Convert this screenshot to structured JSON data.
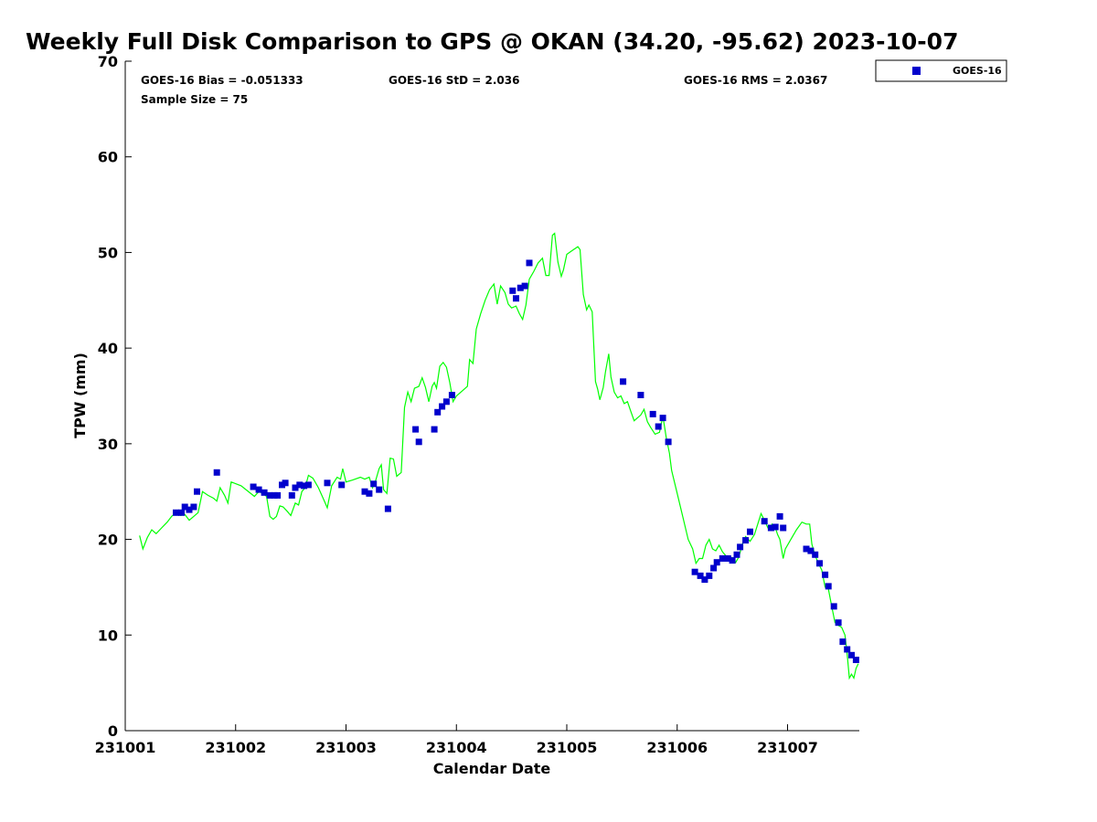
{
  "chart_data": {
    "type": "scatter",
    "title": "Weekly Full Disk Comparison to GPS @ OKAN (34.20, -95.62) 2023-10-07",
    "xlabel": "Calendar Date",
    "ylabel": "TPW (mm)",
    "ylim": [
      0,
      70
    ],
    "yticks": [
      0,
      10,
      20,
      30,
      40,
      50,
      60,
      70
    ],
    "xlim": [
      0,
      6.65
    ],
    "xticks": [
      {
        "value": 0,
        "label": "231001"
      },
      {
        "value": 1,
        "label": "231002"
      },
      {
        "value": 2,
        "label": "231003"
      },
      {
        "value": 3,
        "label": "231004"
      },
      {
        "value": 4,
        "label": "231005"
      },
      {
        "value": 5,
        "label": "231006"
      },
      {
        "value": 6,
        "label": "231007"
      }
    ],
    "stats": {
      "bias": "GOES-16 Bias = -0.051333",
      "std": "GOES-16 StD = 2.036",
      "rms": "GOES-16 RMS = 2.0367",
      "sample": "Sample Size = 75"
    },
    "legend": {
      "placement": "top-right",
      "entries": [
        "GOES-16"
      ]
    },
    "colors": {
      "goes_marker": "#0000cc",
      "gps_line": "#00ff00"
    },
    "series": [
      {
        "name": "GOES-16",
        "kind": "scatter",
        "points": [
          [
            0.46,
            22.8
          ],
          [
            0.51,
            22.8
          ],
          [
            0.54,
            23.4
          ],
          [
            0.58,
            23.1
          ],
          [
            0.62,
            23.4
          ],
          [
            0.65,
            25.0
          ],
          [
            0.83,
            27.0
          ],
          [
            1.16,
            25.5
          ],
          [
            1.21,
            25.2
          ],
          [
            1.26,
            24.9
          ],
          [
            1.31,
            24.6
          ],
          [
            1.35,
            24.6
          ],
          [
            1.38,
            24.6
          ],
          [
            1.42,
            25.7
          ],
          [
            1.45,
            25.9
          ],
          [
            1.51,
            24.6
          ],
          [
            1.54,
            25.4
          ],
          [
            1.58,
            25.7
          ],
          [
            1.62,
            25.6
          ],
          [
            1.66,
            25.7
          ],
          [
            1.83,
            25.9
          ],
          [
            1.96,
            25.7
          ],
          [
            2.17,
            25.0
          ],
          [
            2.21,
            24.8
          ],
          [
            2.25,
            25.8
          ],
          [
            2.3,
            25.2
          ],
          [
            2.38,
            23.2
          ],
          [
            2.63,
            31.5
          ],
          [
            2.66,
            30.2
          ],
          [
            2.8,
            31.5
          ],
          [
            2.83,
            33.3
          ],
          [
            2.87,
            33.9
          ],
          [
            2.91,
            34.4
          ],
          [
            2.96,
            35.1
          ],
          [
            3.51,
            46.0
          ],
          [
            3.54,
            45.2
          ],
          [
            3.58,
            46.3
          ],
          [
            3.62,
            46.5
          ],
          [
            3.66,
            48.9
          ],
          [
            4.51,
            36.5
          ],
          [
            4.67,
            35.1
          ],
          [
            4.78,
            33.1
          ],
          [
            4.83,
            31.8
          ],
          [
            4.87,
            32.7
          ],
          [
            4.92,
            30.2
          ],
          [
            5.16,
            16.6
          ],
          [
            5.21,
            16.2
          ],
          [
            5.25,
            15.8
          ],
          [
            5.29,
            16.2
          ],
          [
            5.33,
            17.0
          ],
          [
            5.36,
            17.6
          ],
          [
            5.41,
            18.0
          ],
          [
            5.46,
            18.0
          ],
          [
            5.5,
            17.8
          ],
          [
            5.54,
            18.4
          ],
          [
            5.57,
            19.2
          ],
          [
            5.62,
            19.9
          ],
          [
            5.66,
            20.8
          ],
          [
            5.79,
            21.9
          ],
          [
            5.85,
            21.2
          ],
          [
            5.89,
            21.3
          ],
          [
            5.93,
            22.4
          ],
          [
            5.96,
            21.2
          ],
          [
            6.17,
            19.0
          ],
          [
            6.21,
            18.8
          ],
          [
            6.25,
            18.4
          ],
          [
            6.29,
            17.5
          ],
          [
            6.34,
            16.3
          ],
          [
            6.37,
            15.1
          ],
          [
            6.42,
            13.0
          ],
          [
            6.46,
            11.3
          ],
          [
            6.5,
            9.3
          ],
          [
            6.54,
            8.5
          ],
          [
            6.58,
            7.9
          ],
          [
            6.62,
            7.4
          ]
        ]
      },
      {
        "name": "GPS",
        "kind": "line",
        "points": [
          [
            0.13,
            20.4
          ],
          [
            0.16,
            19.0
          ],
          [
            0.2,
            20.2
          ],
          [
            0.24,
            21.0
          ],
          [
            0.28,
            20.6
          ],
          [
            0.33,
            21.2
          ],
          [
            0.38,
            21.8
          ],
          [
            0.42,
            22.4
          ],
          [
            0.46,
            22.8
          ],
          [
            0.5,
            22.5
          ],
          [
            0.54,
            22.6
          ],
          [
            0.58,
            22.0
          ],
          [
            0.62,
            22.4
          ],
          [
            0.66,
            22.8
          ],
          [
            0.7,
            25.0
          ],
          [
            0.75,
            24.6
          ],
          [
            0.8,
            24.3
          ],
          [
            0.83,
            24.0
          ],
          [
            0.86,
            25.4
          ],
          [
            0.9,
            24.6
          ],
          [
            0.93,
            23.8
          ],
          [
            0.96,
            26.0
          ],
          [
            1.05,
            25.6
          ],
          [
            1.17,
            24.5
          ],
          [
            1.21,
            25.0
          ],
          [
            1.25,
            24.8
          ],
          [
            1.28,
            24.5
          ],
          [
            1.31,
            22.4
          ],
          [
            1.34,
            22.1
          ],
          [
            1.37,
            22.4
          ],
          [
            1.4,
            23.5
          ],
          [
            1.43,
            23.4
          ],
          [
            1.47,
            22.9
          ],
          [
            1.5,
            22.5
          ],
          [
            1.54,
            23.8
          ],
          [
            1.57,
            23.6
          ],
          [
            1.6,
            25.0
          ],
          [
            1.63,
            25.4
          ],
          [
            1.66,
            26.7
          ],
          [
            1.7,
            26.4
          ],
          [
            1.75,
            25.4
          ],
          [
            1.8,
            24.1
          ],
          [
            1.83,
            23.3
          ],
          [
            1.87,
            25.6
          ],
          [
            1.92,
            26.5
          ],
          [
            1.95,
            26.3
          ],
          [
            1.97,
            27.4
          ],
          [
            2.0,
            26.0
          ],
          [
            2.06,
            26.2
          ],
          [
            2.13,
            26.5
          ],
          [
            2.17,
            26.3
          ],
          [
            2.21,
            26.5
          ],
          [
            2.24,
            25.4
          ],
          [
            2.27,
            26.2
          ],
          [
            2.3,
            27.4
          ],
          [
            2.32,
            27.8
          ],
          [
            2.34,
            25.2
          ],
          [
            2.37,
            24.8
          ],
          [
            2.4,
            28.5
          ],
          [
            2.43,
            28.4
          ],
          [
            2.46,
            26.6
          ],
          [
            2.5,
            27.0
          ],
          [
            2.53,
            33.8
          ],
          [
            2.56,
            35.4
          ],
          [
            2.59,
            34.4
          ],
          [
            2.62,
            35.8
          ],
          [
            2.66,
            36.0
          ],
          [
            2.69,
            36.9
          ],
          [
            2.72,
            35.9
          ],
          [
            2.75,
            34.4
          ],
          [
            2.78,
            36.0
          ],
          [
            2.8,
            36.4
          ],
          [
            2.82,
            35.8
          ],
          [
            2.85,
            38.1
          ],
          [
            2.88,
            38.5
          ],
          [
            2.91,
            38.0
          ],
          [
            2.94,
            36.4
          ],
          [
            2.97,
            34.4
          ],
          [
            3.0,
            35.0
          ],
          [
            3.05,
            35.5
          ],
          [
            3.1,
            36.0
          ],
          [
            3.12,
            38.8
          ],
          [
            3.15,
            38.4
          ],
          [
            3.18,
            42.0
          ],
          [
            3.22,
            43.6
          ],
          [
            3.26,
            45.0
          ],
          [
            3.3,
            46.1
          ],
          [
            3.34,
            46.7
          ],
          [
            3.37,
            44.6
          ],
          [
            3.4,
            46.5
          ],
          [
            3.44,
            45.8
          ],
          [
            3.47,
            44.6
          ],
          [
            3.5,
            44.2
          ],
          [
            3.54,
            44.4
          ],
          [
            3.57,
            43.6
          ],
          [
            3.6,
            43.0
          ],
          [
            3.63,
            44.5
          ],
          [
            3.66,
            47.2
          ],
          [
            3.7,
            48.0
          ],
          [
            3.74,
            48.9
          ],
          [
            3.78,
            49.4
          ],
          [
            3.81,
            47.6
          ],
          [
            3.84,
            47.6
          ],
          [
            3.87,
            51.8
          ],
          [
            3.89,
            52.0
          ],
          [
            3.92,
            49.0
          ],
          [
            3.95,
            47.5
          ],
          [
            3.97,
            48.2
          ],
          [
            4.0,
            49.8
          ],
          [
            4.05,
            50.2
          ],
          [
            4.1,
            50.6
          ],
          [
            4.12,
            50.3
          ],
          [
            4.15,
            45.6
          ],
          [
            4.18,
            44.0
          ],
          [
            4.2,
            44.5
          ],
          [
            4.23,
            43.8
          ],
          [
            4.26,
            36.5
          ],
          [
            4.28,
            35.7
          ],
          [
            4.3,
            34.6
          ],
          [
            4.33,
            35.9
          ],
          [
            4.35,
            37.5
          ],
          [
            4.38,
            39.4
          ],
          [
            4.4,
            37.0
          ],
          [
            4.43,
            35.4
          ],
          [
            4.46,
            34.8
          ],
          [
            4.49,
            35.0
          ],
          [
            4.52,
            34.2
          ],
          [
            4.55,
            34.4
          ],
          [
            4.58,
            33.4
          ],
          [
            4.61,
            32.4
          ],
          [
            4.64,
            32.7
          ],
          [
            4.67,
            33.0
          ],
          [
            4.7,
            33.6
          ],
          [
            4.73,
            32.3
          ],
          [
            4.76,
            31.7
          ],
          [
            4.8,
            31.0
          ],
          [
            4.84,
            31.2
          ],
          [
            4.87,
            32.9
          ],
          [
            4.9,
            30.7
          ],
          [
            4.93,
            29.0
          ],
          [
            4.95,
            27.2
          ],
          [
            5.0,
            24.8
          ],
          [
            5.05,
            22.4
          ],
          [
            5.1,
            20.0
          ],
          [
            5.14,
            19.0
          ],
          [
            5.17,
            17.5
          ],
          [
            5.2,
            18.0
          ],
          [
            5.23,
            18.0
          ],
          [
            5.26,
            19.4
          ],
          [
            5.29,
            20.0
          ],
          [
            5.32,
            19.0
          ],
          [
            5.35,
            18.8
          ],
          [
            5.38,
            19.4
          ],
          [
            5.41,
            18.7
          ],
          [
            5.44,
            18.3
          ],
          [
            5.47,
            18.1
          ],
          [
            5.5,
            18.1
          ],
          [
            5.53,
            17.6
          ],
          [
            5.56,
            18.2
          ],
          [
            5.59,
            19.5
          ],
          [
            5.62,
            20.3
          ],
          [
            5.66,
            19.8
          ],
          [
            5.7,
            20.5
          ],
          [
            5.73,
            21.6
          ],
          [
            5.76,
            22.7
          ],
          [
            5.79,
            22.0
          ],
          [
            5.83,
            21.0
          ],
          [
            5.86,
            21.6
          ],
          [
            5.89,
            21.2
          ],
          [
            5.91,
            20.5
          ],
          [
            5.93,
            20.0
          ],
          [
            5.96,
            18.0
          ],
          [
            5.98,
            19.0
          ],
          [
            6.03,
            20.0
          ],
          [
            6.08,
            21.0
          ],
          [
            6.13,
            21.8
          ],
          [
            6.17,
            21.6
          ],
          [
            6.2,
            21.6
          ],
          [
            6.22,
            19.5
          ],
          [
            6.25,
            18.3
          ],
          [
            6.28,
            17.5
          ],
          [
            6.31,
            16.8
          ],
          [
            6.34,
            15.0
          ],
          [
            6.37,
            14.8
          ],
          [
            6.4,
            13.0
          ],
          [
            6.43,
            11.3
          ],
          [
            6.46,
            11.0
          ],
          [
            6.49,
            10.8
          ],
          [
            6.52,
            10.0
          ],
          [
            6.54,
            8.0
          ],
          [
            6.56,
            5.5
          ],
          [
            6.58,
            5.9
          ],
          [
            6.6,
            5.5
          ],
          [
            6.62,
            6.5
          ],
          [
            6.64,
            7.0
          ]
        ]
      }
    ]
  }
}
